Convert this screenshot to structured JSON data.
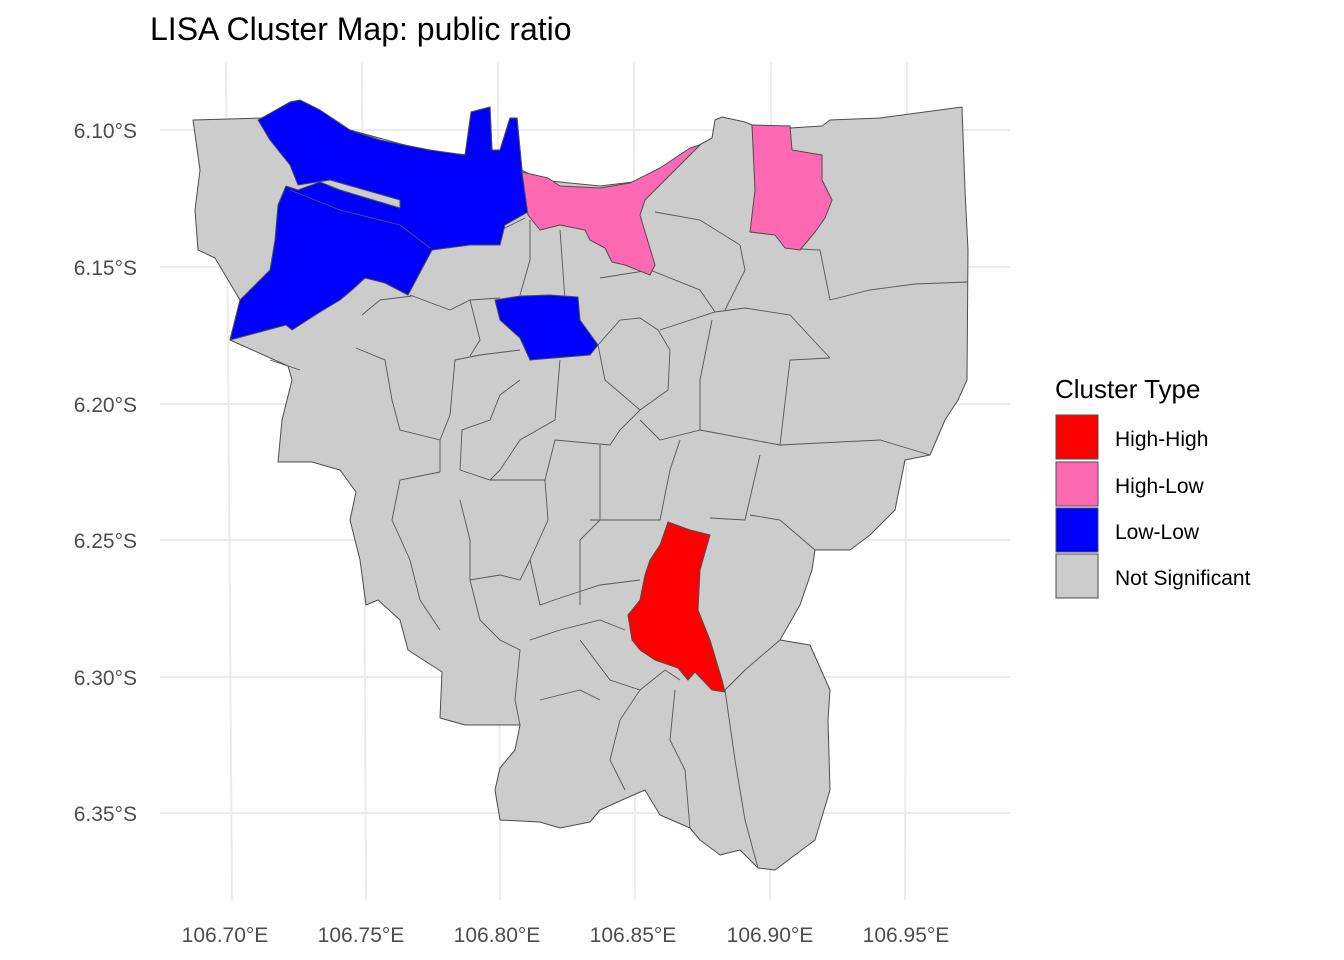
{
  "map": {
    "title": "LISA Cluster Map: public ratio",
    "x_labels": [
      "106.70°E",
      "106.75°E",
      "106.80°E",
      "106.85°E",
      "106.90°E",
      "106.95°E"
    ],
    "y_labels": [
      "6.10°S",
      "6.15°S",
      "6.20°S",
      "6.25°S",
      "6.30°S",
      "6.35°S"
    ]
  },
  "legend": {
    "title": "Cluster Type",
    "items": [
      {
        "label": "High-High",
        "color": "#ff0000"
      },
      {
        "label": "High-Low",
        "color": "#ff69b4"
      },
      {
        "label": "Low-Low",
        "color": "#0000ff"
      },
      {
        "label": "Not Significant",
        "color": "#cccccc"
      }
    ]
  }
}
